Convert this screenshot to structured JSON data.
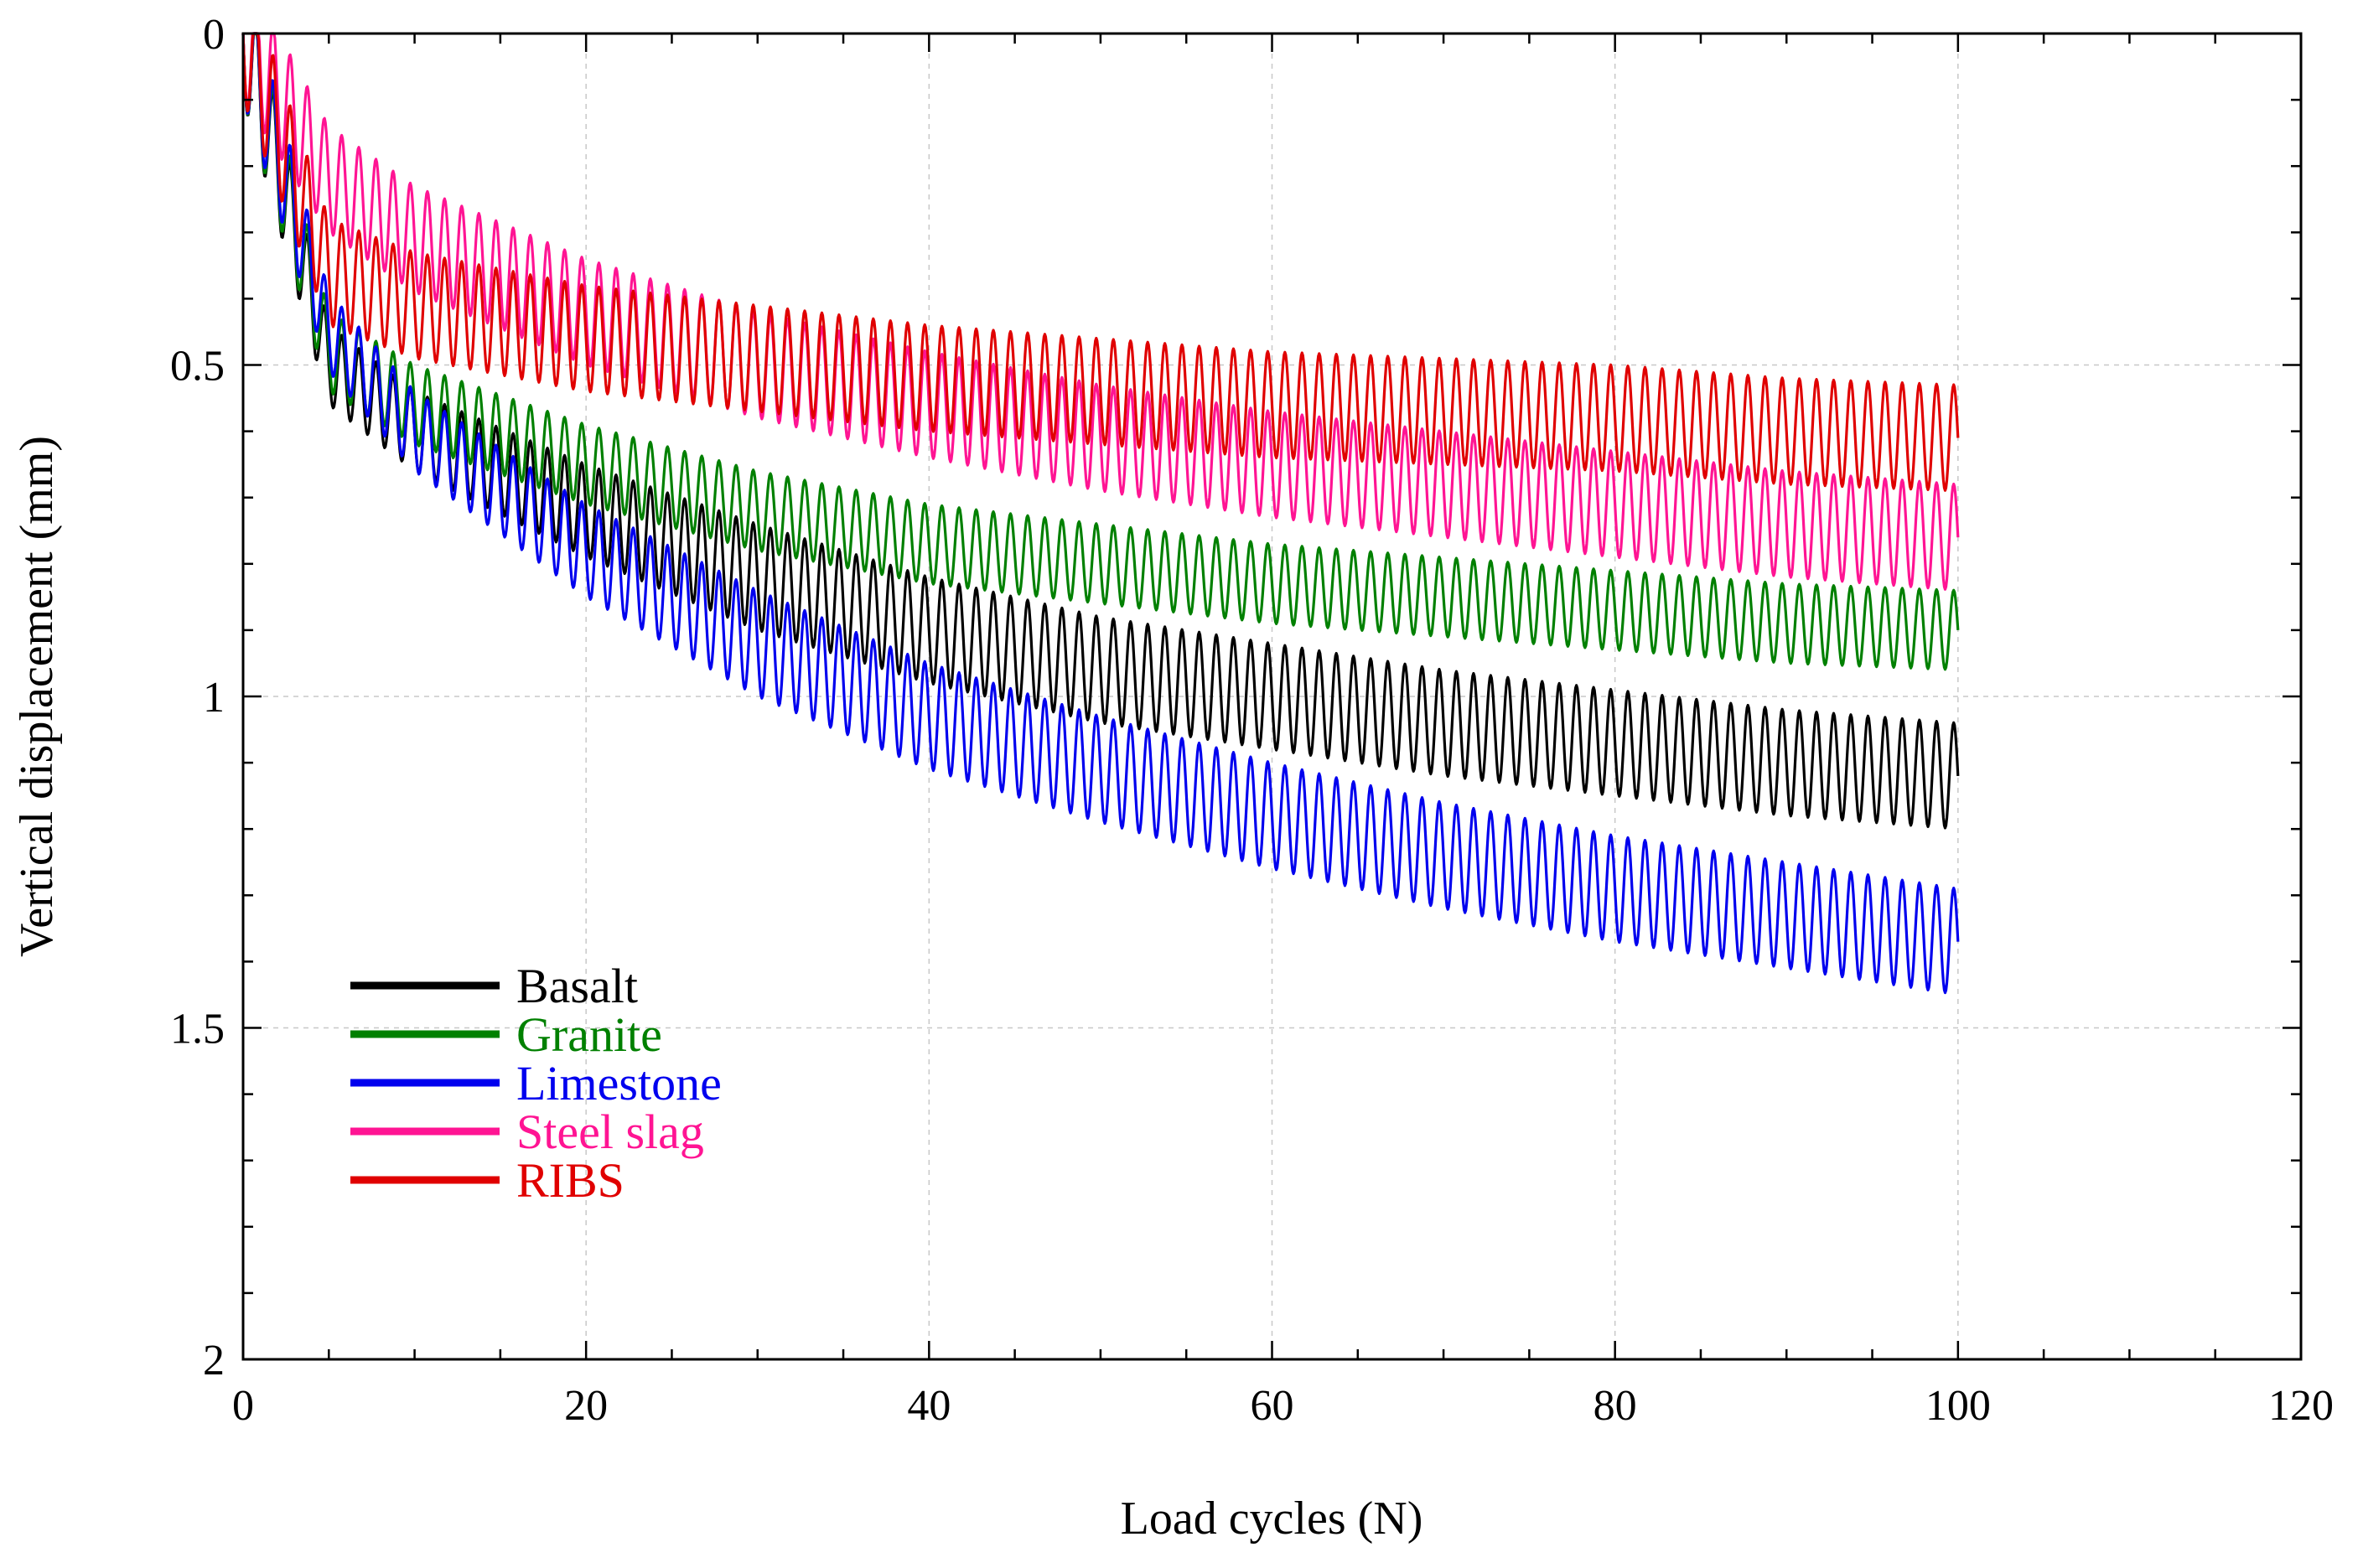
{
  "chart_data": {
    "type": "line",
    "title": "",
    "xlabel": "Load cycles (N)",
    "ylabel": "Vertical displacement (mm)",
    "xlim": [
      0,
      120
    ],
    "ylim": [
      0,
      2
    ],
    "y_inverted": true,
    "x_ticks": [
      0,
      20,
      40,
      60,
      80,
      100,
      120
    ],
    "x_tick_labels": [
      "0",
      "20",
      "40",
      "60",
      "80",
      "100",
      "120"
    ],
    "y_ticks": [
      0,
      0.5,
      1,
      1.5,
      2
    ],
    "y_tick_labels": [
      "0",
      "0.5",
      "1",
      "1.5",
      "2"
    ],
    "grid": true,
    "legend_position": "bottom-left",
    "oscillation_note": "each series oscillates once per load cycle between loaded and unloaded displacement",
    "series": [
      {
        "name": "Basalt",
        "color": "#000000",
        "x": [
          0,
          5,
          10,
          20,
          30,
          40,
          50,
          60,
          70,
          80,
          90,
          100
        ],
        "values": [
          0,
          0.5,
          0.6,
          0.72,
          0.82,
          0.9,
          0.96,
          1.0,
          1.04,
          1.07,
          1.1,
          1.12
        ],
        "amplitude": [
          0.1,
          0.06,
          0.06,
          0.07,
          0.08,
          0.08,
          0.08,
          0.08,
          0.08,
          0.08,
          0.08,
          0.08
        ]
      },
      {
        "name": "Granite",
        "color": "#008000",
        "x": [
          0,
          5,
          10,
          20,
          30,
          40,
          50,
          60,
          70,
          80,
          90,
          100
        ],
        "values": [
          0,
          0.48,
          0.56,
          0.65,
          0.72,
          0.77,
          0.8,
          0.83,
          0.85,
          0.87,
          0.89,
          0.9
        ],
        "amplitude": [
          0.1,
          0.06,
          0.06,
          0.06,
          0.06,
          0.06,
          0.06,
          0.06,
          0.06,
          0.06,
          0.06,
          0.06
        ]
      },
      {
        "name": "Limestone",
        "color": "#0000ee",
        "x": [
          0,
          5,
          10,
          20,
          30,
          40,
          50,
          60,
          70,
          80,
          90,
          100
        ],
        "values": [
          0,
          0.45,
          0.6,
          0.78,
          0.92,
          1.03,
          1.11,
          1.18,
          1.24,
          1.29,
          1.33,
          1.37
        ],
        "amplitude": [
          0.1,
          0.06,
          0.06,
          0.07,
          0.08,
          0.08,
          0.08,
          0.08,
          0.08,
          0.08,
          0.08,
          0.08
        ]
      },
      {
        "name": "Steel slag",
        "color": "#ff1493",
        "x": [
          0,
          5,
          10,
          20,
          30,
          40,
          50,
          60,
          70,
          80,
          90,
          100
        ],
        "values": [
          0,
          0.22,
          0.31,
          0.42,
          0.5,
          0.56,
          0.61,
          0.65,
          0.68,
          0.71,
          0.74,
          0.76
        ],
        "amplitude": [
          0.1,
          0.08,
          0.08,
          0.08,
          0.08,
          0.08,
          0.08,
          0.08,
          0.08,
          0.08,
          0.08,
          0.08
        ]
      },
      {
        "name": "RIBS",
        "color": "#e00000",
        "x": [
          0,
          5,
          10,
          20,
          30,
          40,
          50,
          60,
          70,
          80,
          90,
          100
        ],
        "values": [
          0,
          0.36,
          0.41,
          0.46,
          0.49,
          0.52,
          0.54,
          0.56,
          0.57,
          0.58,
          0.6,
          0.61
        ],
        "amplitude": [
          0.1,
          0.08,
          0.08,
          0.08,
          0.08,
          0.08,
          0.08,
          0.08,
          0.08,
          0.08,
          0.08,
          0.08
        ]
      }
    ]
  }
}
